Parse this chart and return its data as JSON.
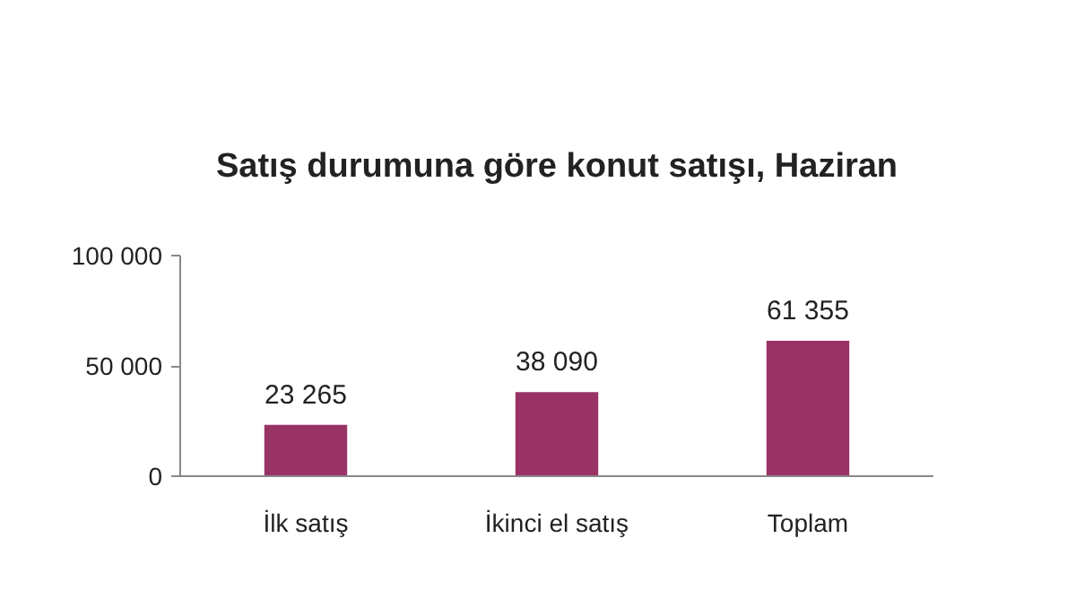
{
  "chart_data": {
    "type": "bar",
    "title": "Satış durumuna göre konut satışı, Haziran",
    "categories": [
      "İlk satış",
      "İkinci el satış",
      "Toplam"
    ],
    "values": [
      23265,
      38090,
      61355
    ],
    "color": "#993366",
    "value_labels": [
      "23 265",
      "38 090",
      "61 355"
    ],
    "ylim": [
      0,
      100000
    ],
    "yticks": [
      0,
      {
        "value": 50000,
        "label": "50 000"
      },
      {
        "value": 100000,
        "label": "100 000"
      }
    ],
    "grid": false
  }
}
